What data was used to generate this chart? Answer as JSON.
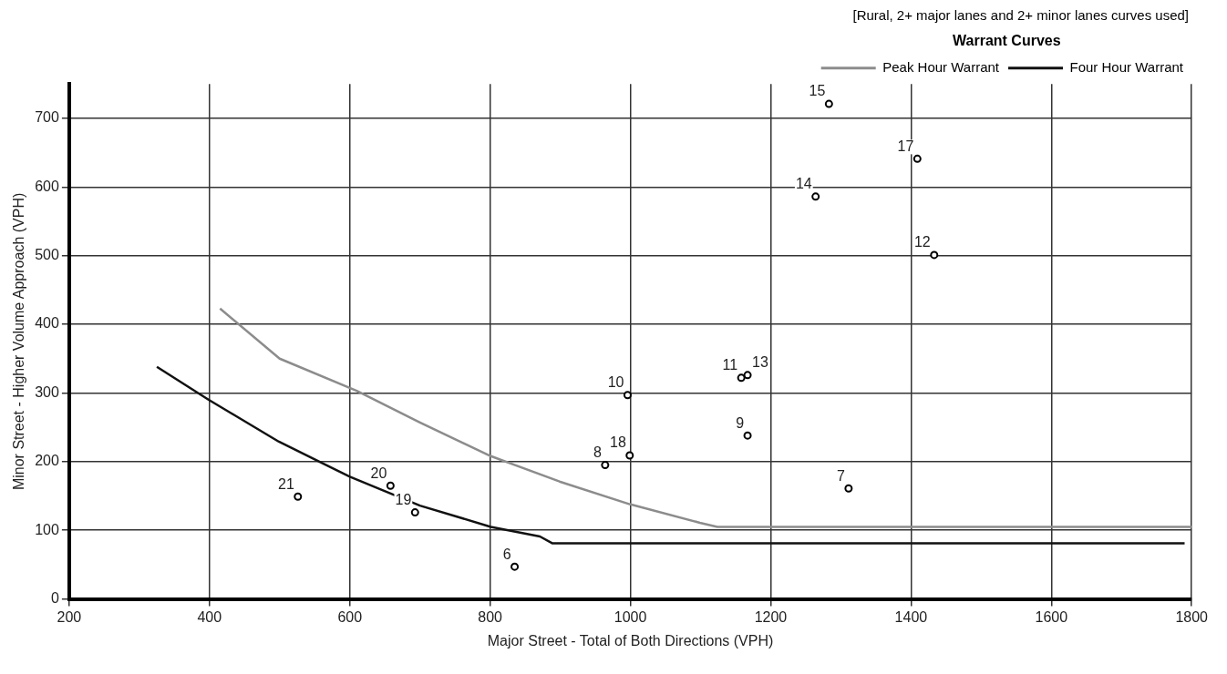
{
  "chart_data": {
    "type": "scatter",
    "xlabel": "Major Street - Total of Both Directions (VPH)",
    "ylabel": "Minor Street - Higher Volume Approach (VPH)",
    "legend_title": "Warrant Curves",
    "annotations": [
      "[Rural,  2+ major lanes and 2+ minor lanes curves used]",
      {
        "text": "21",
        "x": 526,
        "y": 149
      },
      {
        "text": "20",
        "x": 658,
        "y": 165
      },
      {
        "text": "19",
        "x": 693,
        "y": 126
      },
      {
        "text": "6",
        "x": 835,
        "y": 47
      },
      {
        "text": "8",
        "x": 964,
        "y": 195
      },
      {
        "text": "18",
        "x": 999,
        "y": 209
      },
      {
        "text": "10",
        "x": 996,
        "y": 297
      },
      {
        "text": "11",
        "x": 1158,
        "y": 322
      },
      {
        "text": "13",
        "x": 1167,
        "y": 326
      },
      {
        "text": "9",
        "x": 1167,
        "y": 238
      },
      {
        "text": "7",
        "x": 1311,
        "y": 161
      },
      {
        "text": "15",
        "x": 1283,
        "y": 721
      },
      {
        "text": "17",
        "x": 1409,
        "y": 641
      },
      {
        "text": "14",
        "x": 1264,
        "y": 586
      },
      {
        "text": "12",
        "x": 1433,
        "y": 501
      }
    ],
    "xlim": [
      200,
      1800
    ],
    "xticks": [
      200,
      400,
      600,
      800,
      1000,
      1200,
      1400,
      1600,
      1800
    ],
    "ylim": [
      0,
      750
    ],
    "yticks": [
      0,
      100,
      200,
      300,
      400,
      500,
      600,
      700
    ],
    "grid": true,
    "legend": "top right",
    "series": [
      {
        "color": "#000000",
        "marker": "circle",
        "x": [
          526,
          658,
          693,
          835,
          964,
          999,
          996,
          1158,
          1167,
          1167,
          1311,
          1283,
          1409,
          1264,
          1433
        ],
        "values": [
          149,
          165,
          126,
          47,
          195,
          209,
          297,
          322,
          326,
          238,
          161,
          721,
          641,
          586,
          501
        ]
      },
      {
        "type": "line",
        "name": "Peak Hour Warrant",
        "color": "#8c8c8c",
        "marker": "none",
        "x": [
          415,
          500,
          610,
          700,
          801,
          899,
          999,
          1099,
          1124,
          1800
        ],
        "values": [
          423,
          350,
          303,
          257,
          208,
          171,
          138,
          111,
          105,
          105
        ]
      },
      {
        "type": "line",
        "name": "Four Hour Warrant",
        "color": "#111111",
        "marker": "none",
        "x": [
          325,
          399,
          499,
          600,
          700,
          801,
          861,
          871,
          889,
          1790
        ],
        "values": [
          338,
          290,
          229,
          178,
          136,
          105,
          93,
          91,
          81,
          81
        ]
      }
    ]
  }
}
